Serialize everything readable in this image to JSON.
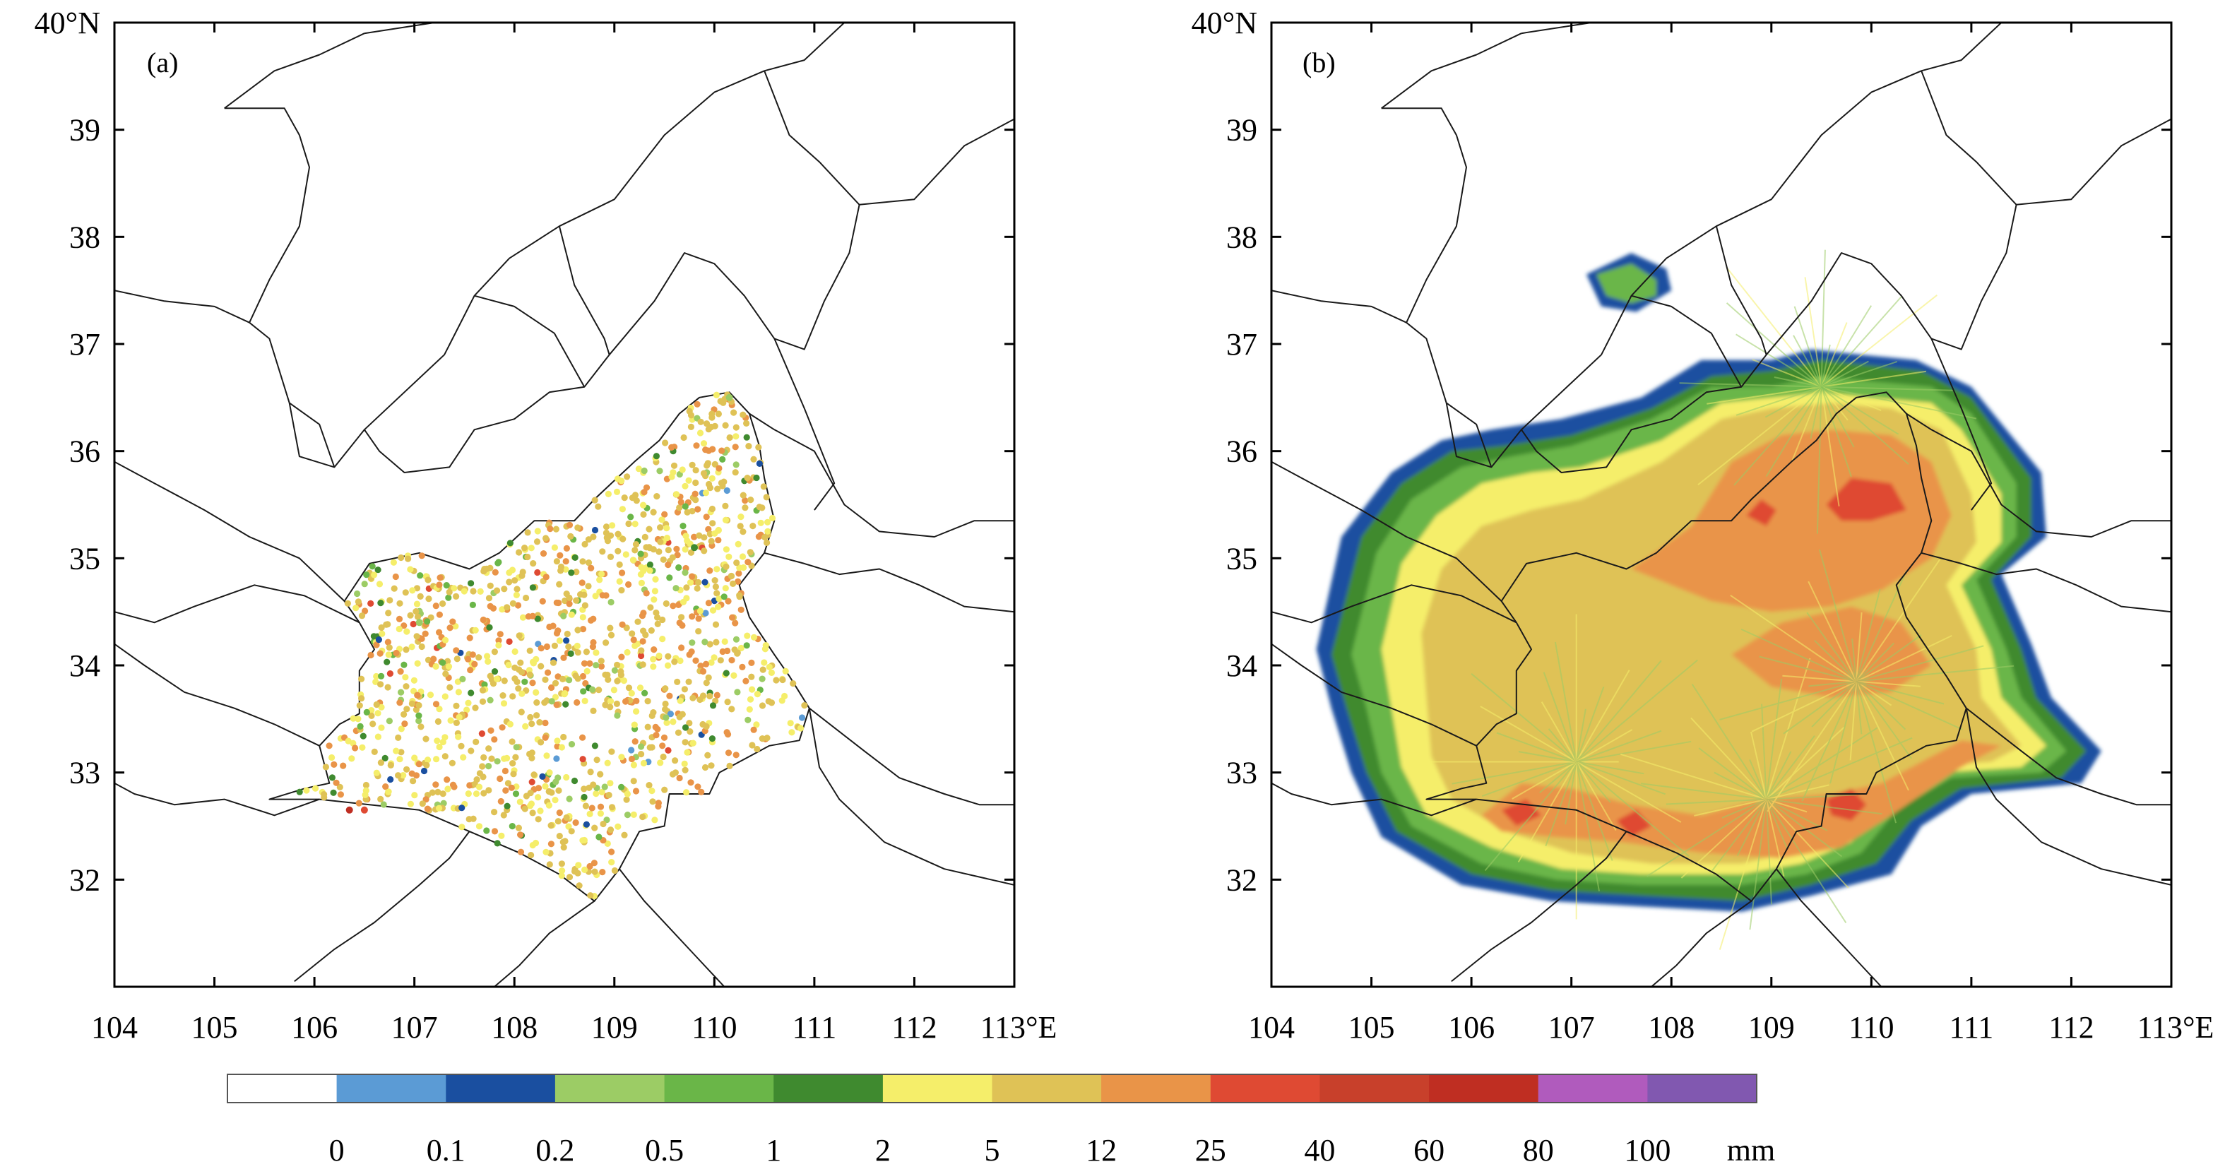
{
  "panels": [
    {
      "id": "a",
      "tag": "(a)",
      "kind": "station-points"
    },
    {
      "id": "b",
      "tag": "(b)",
      "kind": "radar-field"
    }
  ],
  "axes": {
    "lon_min": 104,
    "lon_max": 113,
    "lat_min": 31,
    "lat_max": 40,
    "x_tick_labels": [
      "104",
      "105",
      "106",
      "107",
      "108",
      "109",
      "110",
      "111",
      "112",
      "113°E"
    ],
    "y_tick_labels": [
      "40°N",
      "39",
      "38",
      "37",
      "36",
      "35",
      "34",
      "33",
      "32"
    ],
    "x_tick_values": [
      104,
      105,
      106,
      107,
      108,
      109,
      110,
      111,
      112,
      113
    ],
    "y_tick_values": [
      40,
      39,
      38,
      37,
      36,
      35,
      34,
      33,
      32
    ]
  },
  "colorbar": {
    "labels": [
      "0",
      "0.1",
      "0.2",
      "0.5",
      "1",
      "2",
      "5",
      "12",
      "25",
      "40",
      "60",
      "80",
      "100"
    ],
    "unit": "mm",
    "colors": [
      "#ffffff",
      "#5b9bd5",
      "#1a4fa0",
      "#9ccc65",
      "#6ab648",
      "#3f8a2f",
      "#f5ee6a",
      "#dfc256",
      "#e99448",
      "#df4a33",
      "#c8402b",
      "#bf2e22",
      "#b05bbd",
      "#8158b0"
    ]
  },
  "chart_data": {
    "type": "map",
    "description_values": {
      "radar_centers": [
        [
          107.05,
          33.1
        ],
        [
          108.95,
          32.75
        ],
        [
          109.85,
          33.85
        ],
        [
          109.5,
          36.6
        ]
      ],
      "sample_station_points": [
        {
          "lon": 106.5,
          "lat": 32.65,
          "class": "25"
        },
        {
          "lon": 106.35,
          "lat": 32.65,
          "class": "60"
        },
        {
          "lon": 110.15,
          "lat": 36.5,
          "class": "0.2"
        },
        {
          "lon": 107.05,
          "lat": 34.4,
          "class": "0.2"
        },
        {
          "lon": 109.8,
          "lat": 35.1,
          "class": "1"
        }
      ]
    }
  }
}
